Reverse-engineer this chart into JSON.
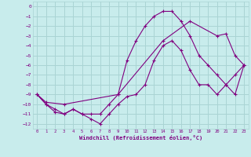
{
  "title": "",
  "xlabel": "Windchill (Refroidissement éolien,°C)",
  "ylabel": "",
  "background_color": "#c8ecec",
  "grid_color": "#aad4d4",
  "line_color": "#800080",
  "xlim": [
    -0.5,
    23.5
  ],
  "ylim": [
    -12.5,
    0.5
  ],
  "xticks": [
    0,
    1,
    2,
    3,
    4,
    5,
    6,
    7,
    8,
    9,
    10,
    11,
    12,
    13,
    14,
    15,
    16,
    17,
    18,
    19,
    20,
    21,
    22,
    23
  ],
  "yticks": [
    0,
    -1,
    -2,
    -3,
    -4,
    -5,
    -6,
    -7,
    -8,
    -9,
    -10,
    -11,
    -12
  ],
  "line1_x": [
    0,
    1,
    2,
    3,
    4,
    5,
    6,
    7,
    8,
    9,
    10,
    11,
    12,
    13,
    14,
    15,
    16,
    17,
    18,
    19,
    20,
    21,
    22,
    23
  ],
  "line1_y": [
    -9,
    -10,
    -10.8,
    -11,
    -10.5,
    -11,
    -11.5,
    -12,
    -11,
    -10,
    -9.2,
    -9,
    -8,
    -5.5,
    -4,
    -3.5,
    -4.5,
    -6.5,
    -8,
    -8,
    -9,
    -8,
    -7,
    -6
  ],
  "line2_x": [
    0,
    1,
    2,
    3,
    4,
    5,
    6,
    7,
    8,
    9,
    10,
    11,
    12,
    13,
    14,
    15,
    16,
    17,
    18,
    19,
    20,
    21,
    22,
    23
  ],
  "line2_y": [
    -9,
    -10,
    -10.5,
    -11,
    -10.5,
    -11,
    -11,
    -11,
    -10,
    -9,
    -5.5,
    -3.5,
    -2,
    -1,
    -0.5,
    -0.5,
    -1.5,
    -3,
    -5,
    -6,
    -7,
    -8,
    -9,
    -6
  ],
  "line3_x": [
    0,
    1,
    3,
    9,
    14,
    17,
    20,
    21,
    22,
    23
  ],
  "line3_y": [
    -9,
    -9.8,
    -10,
    -9,
    -3.5,
    -1.5,
    -3,
    -2.8,
    -5,
    -6
  ]
}
